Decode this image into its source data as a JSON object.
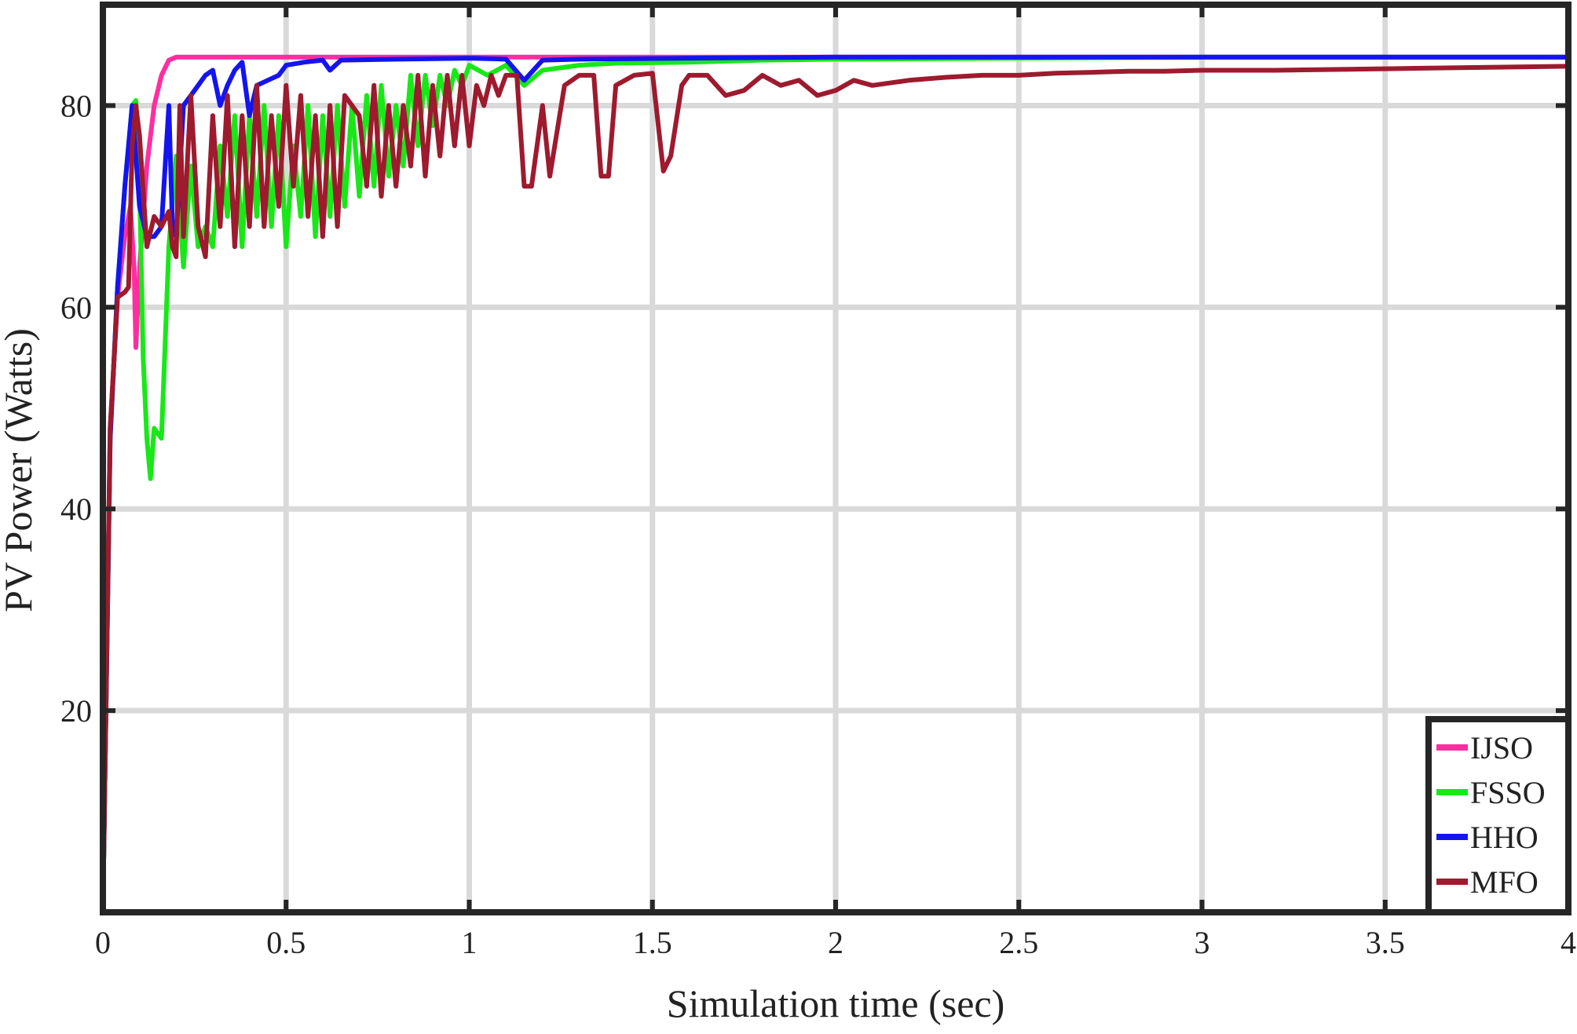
{
  "chart_data": {
    "type": "line",
    "title": "",
    "xlabel": "Simulation time (sec)",
    "ylabel": "PV Power (Watts)",
    "xlim": [
      0,
      4
    ],
    "ylim": [
      0,
      90
    ],
    "xticks": [
      0,
      0.5,
      1,
      1.5,
      2,
      2.5,
      3,
      3.5,
      4
    ],
    "xtick_labels": [
      "0",
      "0.5",
      "1",
      "1.5",
      "2",
      "2.5",
      "3",
      "3.5",
      "4"
    ],
    "yticks": [
      20,
      40,
      60,
      80
    ],
    "ytick_labels": [
      "20",
      "40",
      "60",
      "80"
    ],
    "grid": true,
    "legend_position": "bottom-right",
    "series": [
      {
        "name": "IJSO",
        "color": "#ff2ea0",
        "points": [
          [
            0,
            0
          ],
          [
            0.02,
            48
          ],
          [
            0.04,
            61
          ],
          [
            0.06,
            67
          ],
          [
            0.075,
            70
          ],
          [
            0.085,
            64
          ],
          [
            0.09,
            56
          ],
          [
            0.1,
            64
          ],
          [
            0.12,
            74
          ],
          [
            0.14,
            80
          ],
          [
            0.16,
            83
          ],
          [
            0.18,
            84.5
          ],
          [
            0.2,
            84.8
          ],
          [
            0.3,
            84.8
          ],
          [
            0.6,
            84.8
          ],
          [
            1.0,
            84.8
          ],
          [
            1.5,
            84.8
          ],
          [
            2.0,
            84.8
          ],
          [
            3.0,
            84.8
          ],
          [
            4.0,
            84.8
          ]
        ]
      },
      {
        "name": "FSSO",
        "color": "#18e818",
        "points": [
          [
            0,
            0
          ],
          [
            0.02,
            47
          ],
          [
            0.04,
            62
          ],
          [
            0.06,
            72
          ],
          [
            0.08,
            80
          ],
          [
            0.09,
            80.5
          ],
          [
            0.1,
            72
          ],
          [
            0.11,
            55
          ],
          [
            0.12,
            47
          ],
          [
            0.13,
            43
          ],
          [
            0.14,
            48
          ],
          [
            0.16,
            47
          ],
          [
            0.18,
            66
          ],
          [
            0.2,
            75
          ],
          [
            0.22,
            64
          ],
          [
            0.24,
            74
          ],
          [
            0.26,
            66
          ],
          [
            0.28,
            68
          ],
          [
            0.3,
            66
          ],
          [
            0.32,
            76
          ],
          [
            0.34,
            69
          ],
          [
            0.36,
            79
          ],
          [
            0.38,
            66
          ],
          [
            0.4,
            79
          ],
          [
            0.42,
            69
          ],
          [
            0.44,
            80
          ],
          [
            0.46,
            68
          ],
          [
            0.48,
            79
          ],
          [
            0.5,
            66
          ],
          [
            0.52,
            76
          ],
          [
            0.54,
            69
          ],
          [
            0.56,
            80
          ],
          [
            0.58,
            67
          ],
          [
            0.6,
            79
          ],
          [
            0.62,
            69
          ],
          [
            0.64,
            80
          ],
          [
            0.66,
            70
          ],
          [
            0.68,
            80
          ],
          [
            0.7,
            71
          ],
          [
            0.72,
            81
          ],
          [
            0.74,
            72
          ],
          [
            0.76,
            82
          ],
          [
            0.78,
            73
          ],
          [
            0.8,
            80
          ],
          [
            0.82,
            74
          ],
          [
            0.84,
            83
          ],
          [
            0.86,
            76
          ],
          [
            0.88,
            83
          ],
          [
            0.9,
            78
          ],
          [
            0.92,
            83
          ],
          [
            0.94,
            80
          ],
          [
            0.96,
            83.5
          ],
          [
            0.98,
            82
          ],
          [
            1.0,
            84
          ],
          [
            1.05,
            83
          ],
          [
            1.1,
            84
          ],
          [
            1.15,
            82
          ],
          [
            1.2,
            83.5
          ],
          [
            1.3,
            84
          ],
          [
            1.4,
            84.2
          ],
          [
            1.6,
            84.3
          ],
          [
            1.8,
            84.5
          ],
          [
            2.0,
            84.6
          ],
          [
            2.5,
            84.7
          ],
          [
            3.0,
            84.8
          ],
          [
            4.0,
            84.8
          ]
        ]
      },
      {
        "name": "HHO",
        "color": "#1414f0",
        "points": [
          [
            0,
            0
          ],
          [
            0.02,
            47
          ],
          [
            0.04,
            62
          ],
          [
            0.06,
            72
          ],
          [
            0.08,
            80
          ],
          [
            0.1,
            70
          ],
          [
            0.12,
            67
          ],
          [
            0.14,
            67
          ],
          [
            0.16,
            68
          ],
          [
            0.18,
            80
          ],
          [
            0.19,
            68
          ],
          [
            0.2,
            67
          ],
          [
            0.22,
            80
          ],
          [
            0.24,
            81
          ],
          [
            0.26,
            82
          ],
          [
            0.28,
            83
          ],
          [
            0.3,
            83.5
          ],
          [
            0.32,
            80
          ],
          [
            0.34,
            82
          ],
          [
            0.36,
            83.5
          ],
          [
            0.38,
            84.3
          ],
          [
            0.4,
            79
          ],
          [
            0.42,
            82
          ],
          [
            0.45,
            82.5
          ],
          [
            0.48,
            83
          ],
          [
            0.5,
            84
          ],
          [
            0.55,
            84.3
          ],
          [
            0.6,
            84.5
          ],
          [
            0.62,
            83.5
          ],
          [
            0.65,
            84.5
          ],
          [
            0.8,
            84.6
          ],
          [
            1.0,
            84.7
          ],
          [
            1.1,
            84.6
          ],
          [
            1.15,
            82.5
          ],
          [
            1.2,
            84.5
          ],
          [
            1.3,
            84.6
          ],
          [
            1.6,
            84.7
          ],
          [
            2.0,
            84.8
          ],
          [
            3.0,
            84.8
          ],
          [
            4.0,
            84.8
          ]
        ]
      },
      {
        "name": "MFO",
        "color": "#9e1a2e",
        "points": [
          [
            0,
            0
          ],
          [
            0.02,
            48
          ],
          [
            0.04,
            61
          ],
          [
            0.06,
            61.5
          ],
          [
            0.07,
            62
          ],
          [
            0.08,
            76
          ],
          [
            0.09,
            80
          ],
          [
            0.1,
            77
          ],
          [
            0.12,
            66
          ],
          [
            0.14,
            69
          ],
          [
            0.16,
            68
          ],
          [
            0.18,
            69.5
          ],
          [
            0.19,
            66
          ],
          [
            0.2,
            65
          ],
          [
            0.21,
            80
          ],
          [
            0.22,
            67
          ],
          [
            0.24,
            81
          ],
          [
            0.26,
            68
          ],
          [
            0.28,
            65
          ],
          [
            0.3,
            79
          ],
          [
            0.32,
            68
          ],
          [
            0.34,
            81
          ],
          [
            0.36,
            66
          ],
          [
            0.38,
            79
          ],
          [
            0.4,
            68
          ],
          [
            0.42,
            82
          ],
          [
            0.44,
            68
          ],
          [
            0.46,
            79
          ],
          [
            0.48,
            70
          ],
          [
            0.5,
            82
          ],
          [
            0.52,
            72
          ],
          [
            0.54,
            81
          ],
          [
            0.56,
            69
          ],
          [
            0.58,
            79
          ],
          [
            0.6,
            67
          ],
          [
            0.62,
            80
          ],
          [
            0.64,
            68
          ],
          [
            0.66,
            81
          ],
          [
            0.7,
            79
          ],
          [
            0.72,
            72
          ],
          [
            0.74,
            82
          ],
          [
            0.76,
            71
          ],
          [
            0.78,
            80
          ],
          [
            0.8,
            72
          ],
          [
            0.82,
            80
          ],
          [
            0.84,
            74
          ],
          [
            0.86,
            83
          ],
          [
            0.88,
            73
          ],
          [
            0.9,
            82
          ],
          [
            0.92,
            75
          ],
          [
            0.94,
            83
          ],
          [
            0.96,
            76
          ],
          [
            0.98,
            83
          ],
          [
            1.0,
            76
          ],
          [
            1.02,
            82
          ],
          [
            1.04,
            80
          ],
          [
            1.06,
            83
          ],
          [
            1.08,
            81
          ],
          [
            1.1,
            83
          ],
          [
            1.13,
            83
          ],
          [
            1.15,
            72
          ],
          [
            1.17,
            72
          ],
          [
            1.2,
            80
          ],
          [
            1.22,
            73
          ],
          [
            1.26,
            82
          ],
          [
            1.3,
            83
          ],
          [
            1.34,
            83
          ],
          [
            1.36,
            73
          ],
          [
            1.38,
            73
          ],
          [
            1.4,
            82
          ],
          [
            1.45,
            83
          ],
          [
            1.5,
            83.2
          ],
          [
            1.53,
            73.5
          ],
          [
            1.55,
            75
          ],
          [
            1.58,
            82
          ],
          [
            1.6,
            83
          ],
          [
            1.65,
            83
          ],
          [
            1.7,
            81
          ],
          [
            1.75,
            81.5
          ],
          [
            1.8,
            83
          ],
          [
            1.85,
            82
          ],
          [
            1.9,
            82.5
          ],
          [
            1.95,
            81
          ],
          [
            2.0,
            81.5
          ],
          [
            2.05,
            82.5
          ],
          [
            2.1,
            82
          ],
          [
            2.2,
            82.5
          ],
          [
            2.3,
            82.8
          ],
          [
            2.4,
            83
          ],
          [
            2.5,
            83
          ],
          [
            2.6,
            83.2
          ],
          [
            2.7,
            83.3
          ],
          [
            2.8,
            83.4
          ],
          [
            2.9,
            83.4
          ],
          [
            3.0,
            83.5
          ],
          [
            3.2,
            83.5
          ],
          [
            3.4,
            83.6
          ],
          [
            3.6,
            83.7
          ],
          [
            3.8,
            83.8
          ],
          [
            4.0,
            83.9
          ]
        ]
      }
    ]
  }
}
